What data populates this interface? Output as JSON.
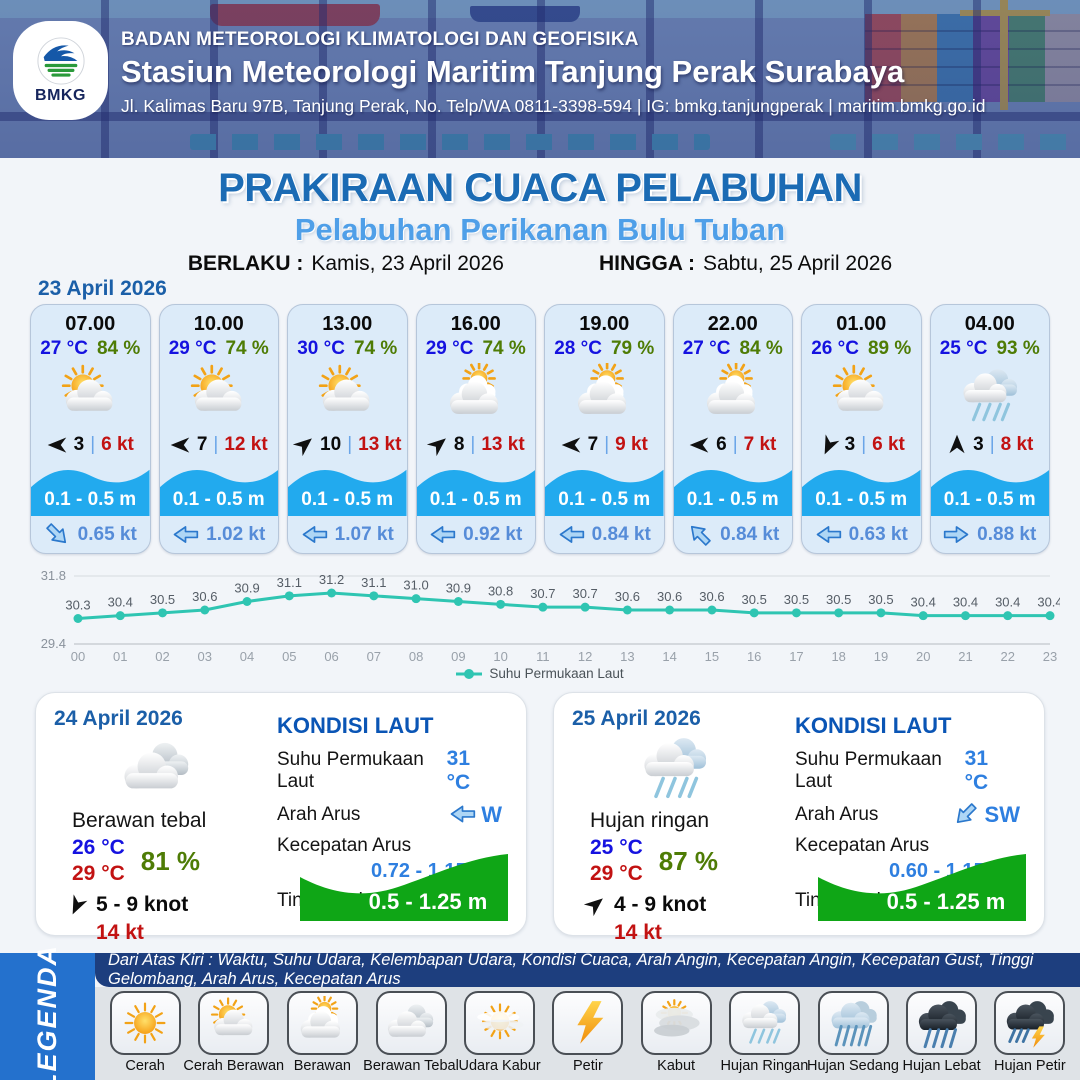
{
  "header": {
    "logo_label": "BMKG",
    "org": "BADAN METEOROLOGI KLIMATOLOGI DAN GEOFISIKA",
    "station": "Stasiun Meteorologi Maritim Tanjung Perak Surabaya",
    "address": "Jl. Kalimas Baru 97B, Tanjung Perak, No. Telp/WA 0811-3398-594 | IG: bmkg.tanjungperak | maritim.bmkg.go.id"
  },
  "title": {
    "main": "PRAKIRAAN CUACA PELABUHAN",
    "subtitle": "Pelabuhan Perikanan Bulu Tuban",
    "berlaku_label": "BERLAKU :",
    "berlaku_value": "Kamis, 23 April 2026",
    "hingga_label": "HINGGA :",
    "hingga_value": "Sabtu, 25 April 2026"
  },
  "labels": {
    "pipe": "|"
  },
  "hourly": {
    "date": "23 April 2026",
    "cards": [
      {
        "time": "07.00",
        "temp": "27 °C",
        "humidity": "84 %",
        "icon": "cerah-berawan",
        "wind_dir_deg": 180,
        "wind_speed": "3",
        "gust": "6 kt",
        "wave": "0.1 - 0.5 m",
        "current_dir_deg": 45,
        "current": "0.65 kt"
      },
      {
        "time": "10.00",
        "temp": "29 °C",
        "humidity": "74 %",
        "icon": "cerah-berawan",
        "wind_dir_deg": 180,
        "wind_speed": "7",
        "gust": "12 kt",
        "wave": "0.1 - 0.5 m",
        "current_dir_deg": 180,
        "current": "1.02 kt"
      },
      {
        "time": "13.00",
        "temp": "30 °C",
        "humidity": "74 %",
        "icon": "cerah-berawan",
        "wind_dir_deg": -40,
        "wind_speed": "10",
        "gust": "13 kt",
        "wave": "0.1 - 0.5 m",
        "current_dir_deg": 180,
        "current": "1.07 kt"
      },
      {
        "time": "16.00",
        "temp": "29 °C",
        "humidity": "74 %",
        "icon": "berawan",
        "wind_dir_deg": -40,
        "wind_speed": "8",
        "gust": "13 kt",
        "wave": "0.1 - 0.5 m",
        "current_dir_deg": 180,
        "current": "0.92 kt"
      },
      {
        "time": "19.00",
        "temp": "28 °C",
        "humidity": "79 %",
        "icon": "berawan",
        "wind_dir_deg": 180,
        "wind_speed": "7",
        "gust": "9 kt",
        "wave": "0.1 - 0.5 m",
        "current_dir_deg": 180,
        "current": "0.84 kt"
      },
      {
        "time": "22.00",
        "temp": "27 °C",
        "humidity": "84 %",
        "icon": "berawan",
        "wind_dir_deg": 180,
        "wind_speed": "6",
        "gust": "7 kt",
        "wave": "0.1 - 0.5 m",
        "current_dir_deg": -135,
        "current": "0.84 kt"
      },
      {
        "time": "01.00",
        "temp": "26 °C",
        "humidity": "89 %",
        "icon": "cerah-berawan",
        "wind_dir_deg": 115,
        "wind_speed": "3",
        "gust": "6 kt",
        "wave": "0.1 - 0.5 m",
        "current_dir_deg": 180,
        "current": "0.63 kt"
      },
      {
        "time": "04.00",
        "temp": "25 °C",
        "humidity": "93 %",
        "icon": "hujan-ringan",
        "wind_dir_deg": -90,
        "wind_speed": "3",
        "gust": "8 kt",
        "wave": "0.1 - 0.5 m",
        "current_dir_deg": 0,
        "current": "0.88 kt"
      }
    ]
  },
  "chart_data": {
    "type": "line",
    "title": "",
    "x": [
      "00",
      "01",
      "02",
      "03",
      "04",
      "05",
      "06",
      "07",
      "08",
      "09",
      "10",
      "11",
      "12",
      "13",
      "14",
      "15",
      "16",
      "17",
      "18",
      "19",
      "20",
      "21",
      "22",
      "23"
    ],
    "series": [
      {
        "name": "Suhu Permukaan Laut",
        "values": [
          30.3,
          30.4,
          30.5,
          30.6,
          30.9,
          31.1,
          31.2,
          31.1,
          31.0,
          30.9,
          30.8,
          30.7,
          30.7,
          30.6,
          30.6,
          30.6,
          30.5,
          30.5,
          30.5,
          30.5,
          30.4,
          30.4,
          30.4,
          30.4
        ]
      }
    ],
    "ylim": [
      29.4,
      31.8
    ],
    "y_ticks": [
      "31.8",
      "29.4"
    ],
    "legend": "Suhu Permukaan Laut",
    "legend_position": "bottom-center",
    "grid": "top-line-only",
    "line_color": "#2fc5b2"
  },
  "daily": [
    {
      "date": "24 April 2026",
      "icon": "berawan-tebal",
      "condition": "Berawan tebal",
      "temp_min": "26 °C",
      "temp_max": "29 °C",
      "humidity": "81 %",
      "wind_dir_deg": 115,
      "wind_range": "5 - 9 knot",
      "gust": "14 kt",
      "sea": {
        "heading": "KONDISI LAUT",
        "sst_label": "Suhu Permukaan Laut",
        "sst": "31 °C",
        "arah_label": "Arah Arus",
        "arah_deg": 180,
        "arah": "W",
        "kecepatan_label": "Kecepatan Arus",
        "kecepatan": "0.72 - 1.15 kt",
        "gelombang_label": "Tinggi Gelombang",
        "gelombang": "0.5 - 1.25 m"
      }
    },
    {
      "date": "25 April 2026",
      "icon": "hujan-ringan",
      "condition": "Hujan ringan",
      "temp_min": "25 °C",
      "temp_max": "29 °C",
      "humidity": "87 %",
      "wind_dir_deg": -40,
      "wind_range": "4 - 9 knot",
      "gust": "14 kt",
      "sea": {
        "heading": "KONDISI LAUT",
        "sst_label": "Suhu Permukaan Laut",
        "sst": "31 °C",
        "arah_label": "Arah Arus",
        "arah_deg": 135,
        "arah": "SW",
        "kecepatan_label": "Kecepatan Arus",
        "kecepatan": "0.60 - 1.15 kt",
        "gelombang_label": "Tinggi Gelombang",
        "gelombang": "0.5 - 1.25 m"
      }
    }
  ],
  "legend": {
    "sidebar": "LEGENDA",
    "note": "Dari Atas Kiri : Waktu, Suhu Udara, Kelembapan Udara, Kondisi Cuaca, Arah Angin, Kecepatan Angin, Kecepatan Gust, Tinggi Gelombang, Arah Arus, Kecepatan Arus",
    "items": [
      {
        "label": "Cerah",
        "icon": "cerah"
      },
      {
        "label": "Cerah Berawan",
        "icon": "cerah-berawan"
      },
      {
        "label": "Berawan",
        "icon": "berawan"
      },
      {
        "label": "Berawan Tebal",
        "icon": "berawan-tebal"
      },
      {
        "label": "Udara Kabur",
        "icon": "udara-kabur"
      },
      {
        "label": "Petir",
        "icon": "petir"
      },
      {
        "label": "Kabut",
        "icon": "kabut"
      },
      {
        "label": "Hujan Ringan",
        "icon": "hujan-ringan"
      },
      {
        "label": "Hujan Sedang",
        "icon": "hujan-sedang"
      },
      {
        "label": "Hujan Lebat",
        "icon": "hujan-lebat"
      },
      {
        "label": "Hujan Petir",
        "icon": "hujan-petir"
      }
    ]
  },
  "colors": {
    "accent_blue": "#1b6bb4",
    "subtitle_blue": "#4f9fe8",
    "date_blue": "#1b5fa8",
    "temp_blue": "#1512e0",
    "humidity_green": "#4e7c05",
    "gust_red": "#c21212",
    "wave_blue": "#22aaee",
    "current_blue": "#568cd8",
    "sea_head_blue": "#0a55b5",
    "sea_value_blue": "#2e7fe0",
    "wave_green": "#0fa616",
    "chart_line": "#2fc5b2",
    "legend_sidebar": "#2471cd",
    "legend_bar": "#1d3e7e"
  }
}
